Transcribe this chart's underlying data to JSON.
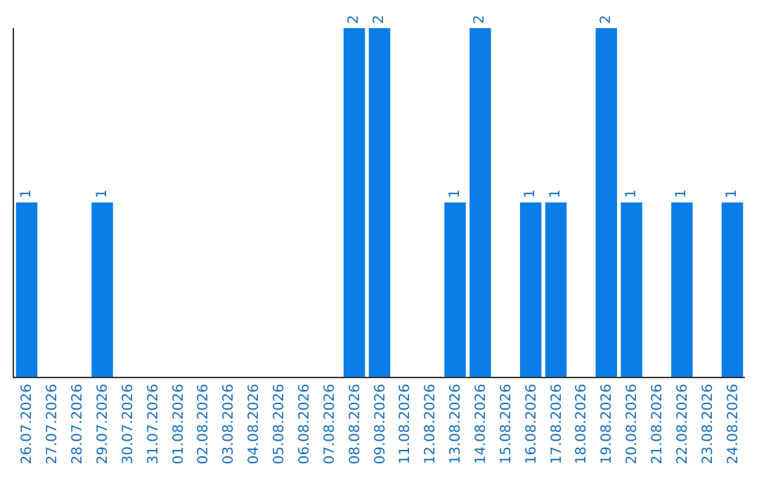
{
  "chart_data": {
    "type": "bar",
    "categories": [
      "26.07.2026",
      "27.07.2026",
      "28.07.2026",
      "29.07.2026",
      "30.07.2026",
      "31.07.2026",
      "01.08.2026",
      "02.08.2026",
      "03.08.2026",
      "04.08.2026",
      "05.08.2026",
      "06.08.2026",
      "07.08.2026",
      "08.08.2026",
      "09.08.2026",
      "11.08.2026",
      "12.08.2026",
      "13.08.2026",
      "14.08.2026",
      "15.08.2026",
      "16.08.2026",
      "17.08.2026",
      "18.08.2026",
      "19.08.2026",
      "20.08.2026",
      "21.08.2026",
      "22.08.2026",
      "23.08.2026",
      "24.08.2026"
    ],
    "values": [
      1,
      0,
      0,
      1,
      0,
      0,
      0,
      0,
      0,
      0,
      0,
      0,
      0,
      2,
      2,
      0,
      0,
      1,
      2,
      0,
      1,
      1,
      0,
      2,
      1,
      0,
      1,
      0,
      1
    ],
    "value_labels": [
      "1",
      null,
      null,
      "1",
      null,
      null,
      null,
      null,
      null,
      null,
      null,
      null,
      null,
      "2",
      "2",
      null,
      null,
      "1",
      "2",
      null,
      "1",
      "1",
      null,
      "2",
      "1",
      null,
      "1",
      null,
      "1"
    ],
    "color": "#0a7ee6",
    "ylim": [
      0,
      2
    ],
    "tick_labels": "x",
    "legend": false
  }
}
